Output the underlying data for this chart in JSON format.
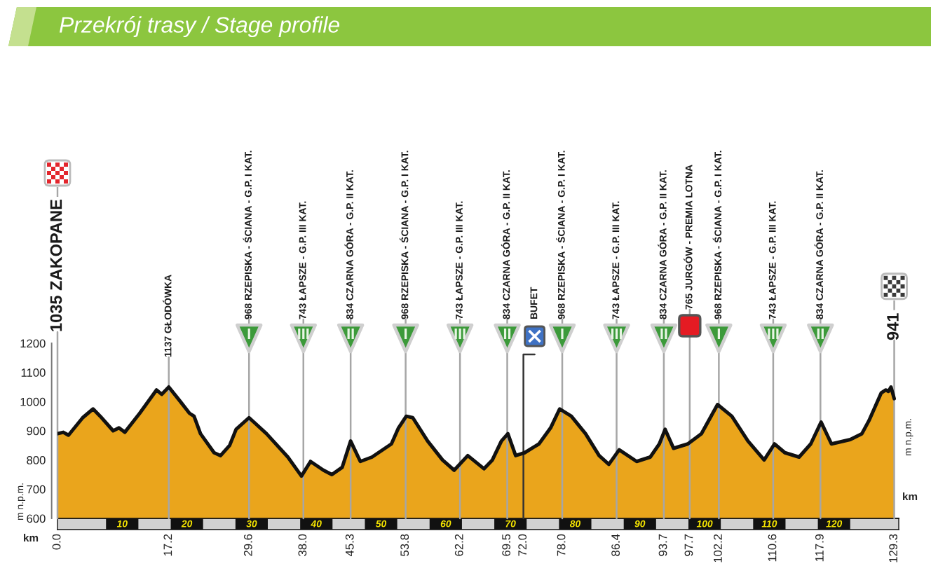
{
  "chart_data": {
    "type": "area",
    "title": "Przekrój trasy / Stage profile",
    "xlabel": "km",
    "ylabel": "m n.p.m.",
    "x": [
      0,
      0.9,
      1.7,
      2.8,
      3.9,
      5.5,
      6.6,
      8.6,
      9.5,
      10.4,
      12.7,
      15.3,
      16.1,
      17.2,
      19.0,
      20.4,
      21.1,
      22.1,
      24.2,
      25.2,
      26.6,
      27.6,
      29.6,
      32.3,
      35.6,
      37.7,
      39.1,
      41.1,
      42.4,
      44.0,
      45.3,
      46.8,
      48.6,
      51.6,
      52.7,
      53.9,
      54.9,
      57.2,
      59.5,
      61.3,
      63.4,
      65.9,
      67.2,
      68.6,
      69.6,
      70.8,
      72.2,
      74.4,
      76.2,
      77.6,
      79.4,
      81.6,
      83.7,
      85.2,
      86.8,
      89.5,
      91.6,
      93.0,
      93.9,
      95.2,
      97.4,
      99.5,
      102.0,
      104.2,
      106.7,
      109.2,
      110.8,
      112.4,
      114.6,
      116.4,
      118.0,
      119.6,
      122.5,
      124.3,
      125.4,
      127.3,
      128.0,
      128.4,
      128.8,
      129.3
    ],
    "series": [
      {
        "color": "#eaa51c",
        "values": [
          890,
          895,
          885,
          915,
          945,
          975,
          950,
          900,
          910,
          895,
          960,
          1040,
          1025,
          1050,
          1000,
          960,
          950,
          890,
          825,
          815,
          850,
          905,
          945,
          890,
          810,
          745,
          795,
          765,
          750,
          775,
          865,
          795,
          810,
          855,
          910,
          950,
          945,
          865,
          800,
          765,
          815,
          770,
          800,
          865,
          890,
          815,
          825,
          855,
          910,
          975,
          950,
          890,
          815,
          785,
          835,
          795,
          810,
          855,
          905,
          840,
          855,
          890,
          990,
          950,
          865,
          800,
          855,
          825,
          810,
          855,
          930,
          855,
          870,
          890,
          935,
          1030,
          1040,
          1035,
          1050,
          1010
        ]
      }
    ],
    "xlim": [
      0,
      130
    ],
    "ylim": [
      600,
      1200
    ],
    "yticks": [
      600,
      700,
      800,
      900,
      1000,
      1100,
      1200
    ],
    "xticks": [
      {
        "value": 0,
        "label": "0.0"
      },
      {
        "value": 17.2,
        "label": "17.2"
      },
      {
        "value": 29.6,
        "label": "29.6"
      },
      {
        "value": 38.0,
        "label": "38.0"
      },
      {
        "value": 45.3,
        "label": "45.3"
      },
      {
        "value": 53.8,
        "label": "53.8"
      },
      {
        "value": 62.2,
        "label": "62.2"
      },
      {
        "value": 69.5,
        "label": "69.5"
      },
      {
        "value": 72.0,
        "label": "72.0"
      },
      {
        "value": 78.0,
        "label": "78.0"
      },
      {
        "value": 86.4,
        "label": "86.4"
      },
      {
        "value": 93.7,
        "label": "93.7"
      },
      {
        "value": 97.7,
        "label": "97.7"
      },
      {
        "value": 102.2,
        "label": "102.2"
      },
      {
        "value": 110.6,
        "label": "110.6"
      },
      {
        "value": 117.9,
        "label": "117.9"
      },
      {
        "value": 129.3,
        "label": "129.3"
      }
    ],
    "x2lim": [
      0,
      130
    ],
    "x2ticks": [
      10,
      20,
      30,
      40,
      50,
      60,
      70,
      80,
      90,
      100,
      110,
      120
    ],
    "annotations": [
      "941"
    ],
    "ref_lines": [
      {
        "axis": "x",
        "value": 0,
        "label": "1035 ZAKOPANE",
        "color": "#a6a6a6"
      },
      {
        "axis": "x",
        "value": 17.2,
        "label": "1137 GŁODÓWKA",
        "color": "#a6a6a6"
      },
      {
        "axis": "x",
        "value": 29.6,
        "label": "968 RZEPISKA - ŚCIANA - G.P. I KAT.",
        "color": "#a6a6a6"
      },
      {
        "axis": "x",
        "value": 38.0,
        "label": "743 ŁAPSZE - G.P. III KAT.",
        "color": "#a6a6a6"
      },
      {
        "axis": "x",
        "value": 45.3,
        "label": "834 CZARNA GÓRA - G.P. II KAT.",
        "color": "#a6a6a6"
      },
      {
        "axis": "x",
        "value": 53.8,
        "label": "968 RZEPISKA - ŚCIANA - G.P. I KAT.",
        "color": "#a6a6a6"
      },
      {
        "axis": "x",
        "value": 62.2,
        "label": "743 ŁAPSZE - G.P. III KAT.",
        "color": "#a6a6a6"
      },
      {
        "axis": "x",
        "value": 69.5,
        "label": "834 CZARNA GÓRA - G.P. II KAT.",
        "color": "#a6a6a6"
      },
      {
        "axis": "x",
        "value": 72.0,
        "label": "BUFET",
        "color": "#333333"
      },
      {
        "axis": "x",
        "value": 78.0,
        "label": "968 RZEPISKA - ŚCIANA - G.P. I KAT.",
        "color": "#a6a6a6"
      },
      {
        "axis": "x",
        "value": 86.4,
        "label": "743 ŁAPSZE - G.P. III KAT.",
        "color": "#a6a6a6"
      },
      {
        "axis": "x",
        "value": 93.7,
        "label": "834 CZARNA GÓRA - G.P. II KAT.",
        "color": "#a6a6a6"
      },
      {
        "axis": "x",
        "value": 97.7,
        "label": "765 JURGÓW - PREMIA LOTNA",
        "color": "#a6a6a6"
      },
      {
        "axis": "x",
        "value": 102.2,
        "label": "968 RZEPISKA - ŚCIANA - G.P. I KAT.",
        "color": "#a6a6a6"
      },
      {
        "axis": "x",
        "value": 110.6,
        "label": "743 ŁAPSZE - G.P. III KAT.",
        "color": "#a6a6a6"
      },
      {
        "axis": "x",
        "value": 117.9,
        "label": "834 CZARNA GÓRA - G.P. II KAT.",
        "color": "#a6a6a6"
      },
      {
        "axis": "x",
        "value": 129.3,
        "color": "#a6a6a6"
      }
    ]
  }
}
